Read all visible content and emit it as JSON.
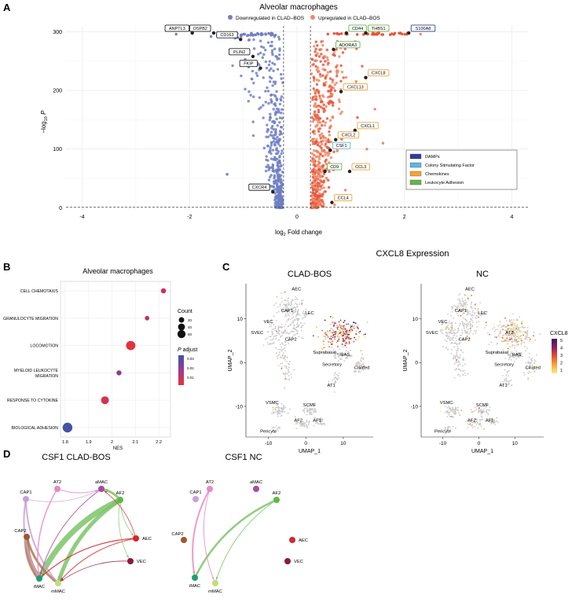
{
  "colors": {
    "down": "#6f7fc4",
    "up": "#e8553a",
    "up_light": "#f08a66",
    "grid": "#ececec",
    "damp": "#2f3f99",
    "csf": "#5fb7d6",
    "chemokine": "#f3a535",
    "adhesion": "#69b548",
    "padj_low": "#e8323a",
    "padj_high": "#3e55a6"
  },
  "panels": {
    "a": "A",
    "b": "B",
    "c": "C",
    "d": "D"
  },
  "chart_data": [
    {
      "id": "volcano",
      "type": "scatter",
      "title": "Alveolar macrophages",
      "legend": {
        "down": "Downregulated in CLAD–BOS",
        "up": "Upregulated in CLAD–BOS"
      },
      "xlabel": "log2 Fold change",
      "ylabel": "–log10 P",
      "xlim": [
        -4.3,
        4.3
      ],
      "ylim": [
        -5,
        310
      ],
      "xticks": [
        -4,
        -2,
        0,
        2,
        4
      ],
      "yticks": [
        0,
        100,
        200,
        300
      ],
      "thresholds": {
        "x": [
          -0.25,
          0.25
        ],
        "y": 1.3
      },
      "category_legend": [
        "DAMPs",
        "Colony Stimulating Factor",
        "Chemokines",
        "Leukocyte Adhesion"
      ],
      "labels": [
        {
          "gene": "ANPTL3",
          "x": -1.95,
          "y": 298,
          "cat": "none"
        },
        {
          "gene": "OSPB2",
          "x": -1.55,
          "y": 298,
          "cat": "none"
        },
        {
          "gene": "CD163",
          "x": -1.05,
          "y": 287,
          "cat": "none"
        },
        {
          "gene": "PLIN2",
          "x": -0.82,
          "y": 258,
          "cat": "none"
        },
        {
          "gene": "FKIP",
          "x": -0.68,
          "y": 238,
          "cat": "none"
        },
        {
          "gene": "CXCR4",
          "x": -0.45,
          "y": 27,
          "cat": "none"
        },
        {
          "gene": "S100A8",
          "x": 2.08,
          "y": 298,
          "cat": "damp"
        },
        {
          "gene": "CD44",
          "x": 0.92,
          "y": 298,
          "cat": "adhesion"
        },
        {
          "gene": "THBS1",
          "x": 1.28,
          "y": 298,
          "cat": "adhesion"
        },
        {
          "gene": "ADORA3",
          "x": 0.68,
          "y": 270,
          "cat": "adhesion"
        },
        {
          "gene": "CXCL8",
          "x": 1.28,
          "y": 222,
          "cat": "chemokine"
        },
        {
          "gene": "CXCL13",
          "x": 0.82,
          "y": 198,
          "cat": "chemokine"
        },
        {
          "gene": "CXCL1",
          "x": 1.08,
          "y": 132,
          "cat": "chemokine"
        },
        {
          "gene": "CXCL2",
          "x": 0.72,
          "y": 116,
          "cat": "chemokine"
        },
        {
          "gene": "CSF1",
          "x": 0.62,
          "y": 98,
          "cat": "csf"
        },
        {
          "gene": "CCL3",
          "x": 0.98,
          "y": 62,
          "cat": "chemokine"
        },
        {
          "gene": "CD9",
          "x": 0.52,
          "y": 62,
          "cat": "adhesion"
        },
        {
          "gene": "CCL4",
          "x": 0.65,
          "y": 9,
          "cat": "chemokine"
        }
      ]
    },
    {
      "id": "gsea",
      "type": "scatter",
      "title": "Alveolar macrophages",
      "xlabel": "NES",
      "xlim": [
        1.78,
        2.25
      ],
      "xticks": [
        1.8,
        1.9,
        2.0,
        2.1,
        2.2
      ],
      "terms": [
        {
          "label": "CELL CHEMOTAXIS",
          "nes": 2.22,
          "count": 10,
          "padj": 0.012
        },
        {
          "label": "GRANULOCYTE MIGRATION",
          "nes": 2.15,
          "count": 6,
          "padj": 0.014
        },
        {
          "label": "LOCOMOTION",
          "nes": 2.08,
          "count": 56,
          "padj": 0.006
        },
        {
          "label": "MYELOID LEUKOCYTE\nMIGRATION",
          "nes": 2.03,
          "count": 9,
          "padj": 0.022
        },
        {
          "label": "RESPONSE TO CYTOKINE",
          "nes": 1.97,
          "count": 36,
          "padj": 0.009
        },
        {
          "label": "BIOLOGICAL ADHESION",
          "nes": 1.81,
          "count": 64,
          "padj": 0.036
        }
      ],
      "size_legend": {
        "title": "Count",
        "values": [
          20,
          40,
          60
        ]
      },
      "color_legend": {
        "title": "P adjust",
        "values": [
          0.03,
          0.02,
          0.01
        ]
      }
    },
    {
      "id": "umap",
      "type": "scatter",
      "title": "CXCL8 Expression",
      "panels": [
        "CLAD-BOS",
        "NC"
      ],
      "xlabel": "UMAP_1",
      "ylabel": "UMAP_2",
      "xticks": [
        -10,
        0,
        10
      ],
      "yticks": [
        -10,
        0,
        10
      ],
      "colorbar": {
        "title": "CXCL8",
        "values": [
          5,
          4,
          3,
          2,
          1
        ]
      },
      "clusters": [
        "AEC",
        "LEC",
        "VEC",
        "CAP1",
        "SVEC",
        "CAP2",
        "AT2",
        "Suprabasal",
        "RAS",
        "Secretory",
        "Ciliated",
        "AT1",
        "VSMC",
        "SCMF",
        "AF2",
        "AF1",
        "Pericyte"
      ]
    },
    {
      "id": "network",
      "type": "network",
      "panels": [
        "CSF1 CLAD-BOS",
        "CSF1 NC"
      ],
      "nodes": [
        "AT2",
        "aMAC",
        "CAP1",
        "AF2",
        "CAP2",
        "AEC",
        "VEC",
        "iMAC",
        "mMAC"
      ]
    }
  ]
}
